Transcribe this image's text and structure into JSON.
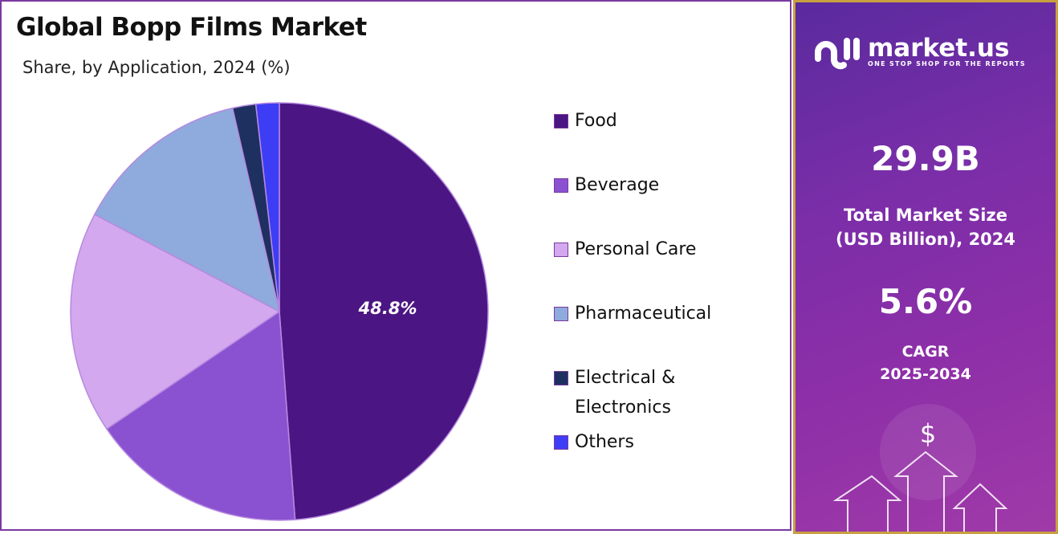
{
  "chart_data": {
    "type": "pie",
    "title": "Global Bopp Films Market",
    "subtitle": "Share, by Application, 2024 (%)",
    "categories": [
      "Food",
      "Beverage",
      "Personal Care",
      "Pharmaceutical",
      "Electrical & Electronics",
      "Others"
    ],
    "values": [
      48.8,
      16.7,
      17.2,
      13.7,
      1.8,
      1.8
    ],
    "colors": [
      "#4b1683",
      "#8a52d0",
      "#d4a8ee",
      "#8faadc",
      "#1e3060",
      "#3d3df5"
    ],
    "data_labels": [
      {
        "category": "Food",
        "text": "48.8%"
      }
    ],
    "start_angle": "12 o'clock",
    "direction": "clockwise",
    "legend_placement": "right"
  },
  "legend": {
    "items": [
      {
        "lines": [
          "Food"
        ]
      },
      {
        "lines": [
          "Beverage"
        ]
      },
      {
        "lines": [
          "Personal Care"
        ]
      },
      {
        "lines": [
          "Pharmaceutical"
        ]
      },
      {
        "lines": [
          "Electrical &",
          "Electronics"
        ]
      },
      {
        "lines": [
          "Others"
        ]
      }
    ]
  },
  "sidebar": {
    "brand": "market.us",
    "tagline": "ONE STOP SHOP FOR THE REPORTS",
    "market_size": "29.9B",
    "market_size_label_1": "Total Market Size",
    "market_size_label_2": "(USD Billion), 2024",
    "cagr": "5.6%",
    "cagr_label_1": "CAGR",
    "cagr_label_2": "2025-2034",
    "dollar_icon": "$"
  }
}
